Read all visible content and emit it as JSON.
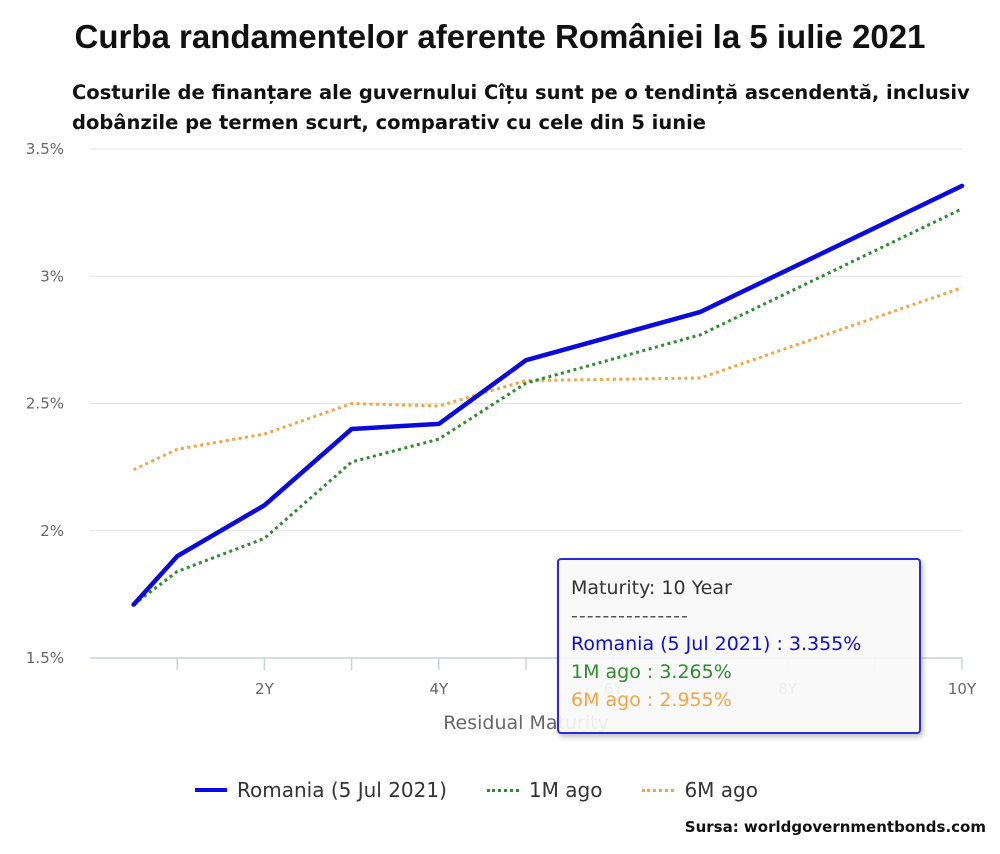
{
  "title": "Curba randamentelor aferente României la 5 iulie 2021",
  "subtitle": "Costurile de finanțare ale guvernului Cîțu sunt pe o tendință ascendentă, inclusiv dobânzile pe termen scurt, comparativ cu cele din 5 iunie",
  "source": "Sursa: worldgovernmentbonds.com",
  "tooltip": {
    "header": "Maturity: 10 Year",
    "separator": "---------------",
    "line1": "Romania (5 Jul 2021) : 3.355%",
    "line2": "1M ago : 3.265%",
    "line3": "6M ago : 2.955%"
  },
  "chart_data": {
    "type": "line",
    "title": "Curba randamentelor aferente României la 5 iulie 2021",
    "xlabel": "Residual Maturity",
    "ylabel": "",
    "x": [
      0.5,
      1,
      2,
      3,
      4,
      5,
      7,
      10
    ],
    "x_ticks": [
      {
        "value": 2,
        "label": "2Y"
      },
      {
        "value": 4,
        "label": "4Y"
      },
      {
        "value": 6,
        "label": "6Y"
      },
      {
        "value": 8,
        "label": "8Y"
      },
      {
        "value": 10,
        "label": "10Y"
      }
    ],
    "y_ticks": [
      {
        "value": 1.5,
        "label": "1.5%"
      },
      {
        "value": 2.0,
        "label": "2%"
      },
      {
        "value": 2.5,
        "label": "2.5%"
      },
      {
        "value": 3.0,
        "label": "3%"
      },
      {
        "value": 3.5,
        "label": "3.5%"
      }
    ],
    "ylim": [
      1.5,
      3.5
    ],
    "xlim": [
      0,
      10
    ],
    "grid": true,
    "legend_position": "bottom",
    "series": [
      {
        "name": "Romania (5 Jul 2021)",
        "color": "#0a0ae0",
        "style": "solid",
        "values": [
          1.71,
          1.9,
          2.1,
          2.4,
          2.42,
          2.67,
          2.86,
          3.355
        ]
      },
      {
        "name": "1M ago",
        "color": "#2e8b2e",
        "style": "dotted",
        "values": [
          1.71,
          1.84,
          1.97,
          2.27,
          2.36,
          2.58,
          2.77,
          3.265
        ]
      },
      {
        "name": "6M ago",
        "color": "#f2a545",
        "style": "dotted",
        "values": [
          2.24,
          2.32,
          2.38,
          2.5,
          2.49,
          2.59,
          2.6,
          2.955
        ]
      }
    ]
  }
}
